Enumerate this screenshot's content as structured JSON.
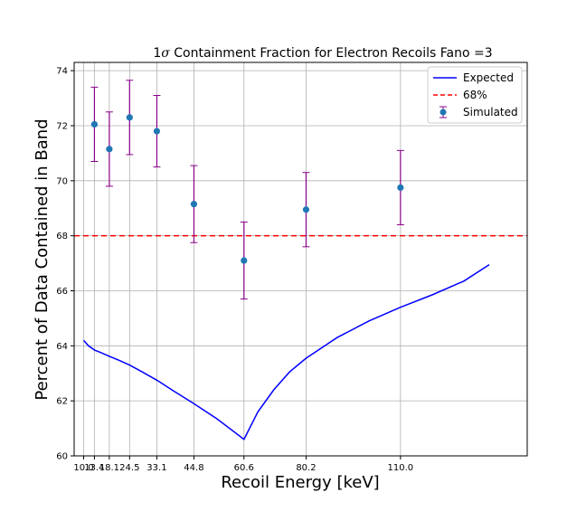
{
  "chart_data": {
    "type": "line",
    "title_prefix": "1",
    "title_sigma": "σ",
    "title_rest": " Containment Fraction for Electron Recoils Fano =3",
    "xlabel": "Recoil Energy [keV]",
    "ylabel": "Percent of Data Contained in Band",
    "xlim": [
      7.0,
      150.0
    ],
    "ylim": [
      60.0,
      74.3
    ],
    "x_ticks": [
      10.0,
      13.4,
      18.1,
      24.5,
      33.1,
      44.8,
      60.6,
      80.2,
      110.0
    ],
    "x_tick_labels": [
      "10.0",
      "13.4",
      "18.1",
      "24.5",
      "33.1",
      "44.8",
      "60.6",
      "80.2",
      "110.0"
    ],
    "y_ticks": [
      60,
      62,
      64,
      66,
      68,
      70,
      72,
      74
    ],
    "y_tick_labels": [
      "60",
      "62",
      "64",
      "66",
      "68",
      "70",
      "72",
      "74"
    ],
    "grid": true,
    "legend_position": "top-right",
    "series": [
      {
        "name": "Expected",
        "kind": "line",
        "color": "#0000ff",
        "x": [
          10.0,
          11.5,
          13.4,
          15.5,
          18.1,
          21.0,
          24.5,
          28.5,
          33.1,
          38.5,
          44.8,
          52.0,
          60.6,
          65.0,
          70.0,
          75.0,
          80.2,
          90.0,
          100.0,
          110.0,
          120.0,
          130.0,
          138.0
        ],
        "y": [
          64.2,
          64.0,
          63.85,
          63.75,
          63.62,
          63.48,
          63.3,
          63.05,
          62.75,
          62.35,
          61.9,
          61.35,
          60.6,
          61.6,
          62.4,
          63.05,
          63.55,
          64.3,
          64.9,
          65.4,
          65.85,
          66.35,
          66.95
        ]
      },
      {
        "name": "68%",
        "kind": "hline",
        "color": "#ff0000",
        "y": 68.0
      },
      {
        "name": "Simulated",
        "kind": "errorbar",
        "marker_color": "#1f77b4",
        "errorbar_color": "#8b008b",
        "x": [
          13.4,
          18.1,
          24.5,
          33.1,
          44.8,
          60.6,
          80.2,
          110.0
        ],
        "y": [
          72.05,
          71.15,
          72.3,
          71.8,
          69.15,
          67.1,
          68.95,
          69.75
        ],
        "yerr": [
          1.35,
          1.35,
          1.35,
          1.3,
          1.4,
          1.4,
          1.35,
          1.35
        ]
      }
    ]
  }
}
